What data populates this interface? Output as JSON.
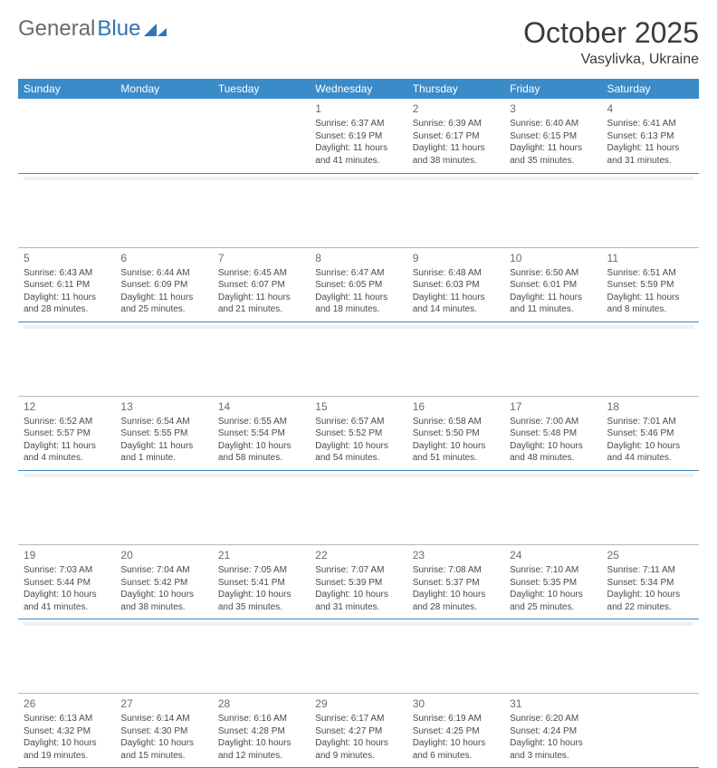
{
  "logo": {
    "text_a": "General",
    "text_b": "Blue"
  },
  "title": "October 2025",
  "location": "Vasylivka, Ukraine",
  "colors": {
    "header_bg": "#3b8bc9",
    "header_text": "#ffffff",
    "rule_blue": "#3b8bc9",
    "rule_gray": "#b8b8b8",
    "sep_fill": "#f0f0f0",
    "logo_gray": "#6a6a6a",
    "logo_blue": "#2e75b6",
    "body_text": "#4a4a4a"
  },
  "day_headers": [
    "Sunday",
    "Monday",
    "Tuesday",
    "Wednesday",
    "Thursday",
    "Friday",
    "Saturday"
  ],
  "weeks": [
    [
      null,
      null,
      null,
      {
        "n": "1",
        "sr": "Sunrise: 6:37 AM",
        "ss": "Sunset: 6:19 PM",
        "dl1": "Daylight: 11 hours",
        "dl2": "and 41 minutes."
      },
      {
        "n": "2",
        "sr": "Sunrise: 6:39 AM",
        "ss": "Sunset: 6:17 PM",
        "dl1": "Daylight: 11 hours",
        "dl2": "and 38 minutes."
      },
      {
        "n": "3",
        "sr": "Sunrise: 6:40 AM",
        "ss": "Sunset: 6:15 PM",
        "dl1": "Daylight: 11 hours",
        "dl2": "and 35 minutes."
      },
      {
        "n": "4",
        "sr": "Sunrise: 6:41 AM",
        "ss": "Sunset: 6:13 PM",
        "dl1": "Daylight: 11 hours",
        "dl2": "and 31 minutes."
      }
    ],
    [
      {
        "n": "5",
        "sr": "Sunrise: 6:43 AM",
        "ss": "Sunset: 6:11 PM",
        "dl1": "Daylight: 11 hours",
        "dl2": "and 28 minutes."
      },
      {
        "n": "6",
        "sr": "Sunrise: 6:44 AM",
        "ss": "Sunset: 6:09 PM",
        "dl1": "Daylight: 11 hours",
        "dl2": "and 25 minutes."
      },
      {
        "n": "7",
        "sr": "Sunrise: 6:45 AM",
        "ss": "Sunset: 6:07 PM",
        "dl1": "Daylight: 11 hours",
        "dl2": "and 21 minutes."
      },
      {
        "n": "8",
        "sr": "Sunrise: 6:47 AM",
        "ss": "Sunset: 6:05 PM",
        "dl1": "Daylight: 11 hours",
        "dl2": "and 18 minutes."
      },
      {
        "n": "9",
        "sr": "Sunrise: 6:48 AM",
        "ss": "Sunset: 6:03 PM",
        "dl1": "Daylight: 11 hours",
        "dl2": "and 14 minutes."
      },
      {
        "n": "10",
        "sr": "Sunrise: 6:50 AM",
        "ss": "Sunset: 6:01 PM",
        "dl1": "Daylight: 11 hours",
        "dl2": "and 11 minutes."
      },
      {
        "n": "11",
        "sr": "Sunrise: 6:51 AM",
        "ss": "Sunset: 5:59 PM",
        "dl1": "Daylight: 11 hours",
        "dl2": "and 8 minutes."
      }
    ],
    [
      {
        "n": "12",
        "sr": "Sunrise: 6:52 AM",
        "ss": "Sunset: 5:57 PM",
        "dl1": "Daylight: 11 hours",
        "dl2": "and 4 minutes."
      },
      {
        "n": "13",
        "sr": "Sunrise: 6:54 AM",
        "ss": "Sunset: 5:55 PM",
        "dl1": "Daylight: 11 hours",
        "dl2": "and 1 minute."
      },
      {
        "n": "14",
        "sr": "Sunrise: 6:55 AM",
        "ss": "Sunset: 5:54 PM",
        "dl1": "Daylight: 10 hours",
        "dl2": "and 58 minutes."
      },
      {
        "n": "15",
        "sr": "Sunrise: 6:57 AM",
        "ss": "Sunset: 5:52 PM",
        "dl1": "Daylight: 10 hours",
        "dl2": "and 54 minutes."
      },
      {
        "n": "16",
        "sr": "Sunrise: 6:58 AM",
        "ss": "Sunset: 5:50 PM",
        "dl1": "Daylight: 10 hours",
        "dl2": "and 51 minutes."
      },
      {
        "n": "17",
        "sr": "Sunrise: 7:00 AM",
        "ss": "Sunset: 5:48 PM",
        "dl1": "Daylight: 10 hours",
        "dl2": "and 48 minutes."
      },
      {
        "n": "18",
        "sr": "Sunrise: 7:01 AM",
        "ss": "Sunset: 5:46 PM",
        "dl1": "Daylight: 10 hours",
        "dl2": "and 44 minutes."
      }
    ],
    [
      {
        "n": "19",
        "sr": "Sunrise: 7:03 AM",
        "ss": "Sunset: 5:44 PM",
        "dl1": "Daylight: 10 hours",
        "dl2": "and 41 minutes."
      },
      {
        "n": "20",
        "sr": "Sunrise: 7:04 AM",
        "ss": "Sunset: 5:42 PM",
        "dl1": "Daylight: 10 hours",
        "dl2": "and 38 minutes."
      },
      {
        "n": "21",
        "sr": "Sunrise: 7:05 AM",
        "ss": "Sunset: 5:41 PM",
        "dl1": "Daylight: 10 hours",
        "dl2": "and 35 minutes."
      },
      {
        "n": "22",
        "sr": "Sunrise: 7:07 AM",
        "ss": "Sunset: 5:39 PM",
        "dl1": "Daylight: 10 hours",
        "dl2": "and 31 minutes."
      },
      {
        "n": "23",
        "sr": "Sunrise: 7:08 AM",
        "ss": "Sunset: 5:37 PM",
        "dl1": "Daylight: 10 hours",
        "dl2": "and 28 minutes."
      },
      {
        "n": "24",
        "sr": "Sunrise: 7:10 AM",
        "ss": "Sunset: 5:35 PM",
        "dl1": "Daylight: 10 hours",
        "dl2": "and 25 minutes."
      },
      {
        "n": "25",
        "sr": "Sunrise: 7:11 AM",
        "ss": "Sunset: 5:34 PM",
        "dl1": "Daylight: 10 hours",
        "dl2": "and 22 minutes."
      }
    ],
    [
      {
        "n": "26",
        "sr": "Sunrise: 6:13 AM",
        "ss": "Sunset: 4:32 PM",
        "dl1": "Daylight: 10 hours",
        "dl2": "and 19 minutes."
      },
      {
        "n": "27",
        "sr": "Sunrise: 6:14 AM",
        "ss": "Sunset: 4:30 PM",
        "dl1": "Daylight: 10 hours",
        "dl2": "and 15 minutes."
      },
      {
        "n": "28",
        "sr": "Sunrise: 6:16 AM",
        "ss": "Sunset: 4:28 PM",
        "dl1": "Daylight: 10 hours",
        "dl2": "and 12 minutes."
      },
      {
        "n": "29",
        "sr": "Sunrise: 6:17 AM",
        "ss": "Sunset: 4:27 PM",
        "dl1": "Daylight: 10 hours",
        "dl2": "and 9 minutes."
      },
      {
        "n": "30",
        "sr": "Sunrise: 6:19 AM",
        "ss": "Sunset: 4:25 PM",
        "dl1": "Daylight: 10 hours",
        "dl2": "and 6 minutes."
      },
      {
        "n": "31",
        "sr": "Sunrise: 6:20 AM",
        "ss": "Sunset: 4:24 PM",
        "dl1": "Daylight: 10 hours",
        "dl2": "and 3 minutes."
      },
      null
    ]
  ]
}
